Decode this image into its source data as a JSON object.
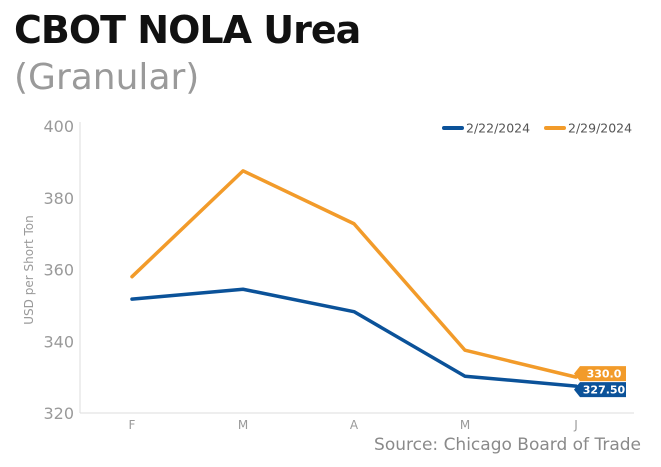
{
  "chart_data": {
    "type": "line",
    "title": "CBOT NOLA Urea",
    "subtitle": "(Granular)",
    "ylabel": "USD per Short Ton",
    "xlabel": "",
    "categories": [
      "F",
      "M",
      "A",
      "M",
      "J"
    ],
    "ylim": [
      320,
      400
    ],
    "yticks": [
      320,
      340,
      360,
      380,
      400
    ],
    "grid": false,
    "legend_position": "top-right",
    "series": [
      {
        "name": "2/22/2024",
        "color": "#0b5299",
        "values": [
          351.75,
          354.5,
          348.25,
          330.25,
          327.5
        ],
        "end_label": "327.50"
      },
      {
        "name": "2/29/2024",
        "color": "#f29b2a",
        "values": [
          358,
          387.5,
          372.75,
          337.5,
          330
        ],
        "end_label": "330.0"
      }
    ],
    "source": "Source: Chicago Board of Trade"
  }
}
